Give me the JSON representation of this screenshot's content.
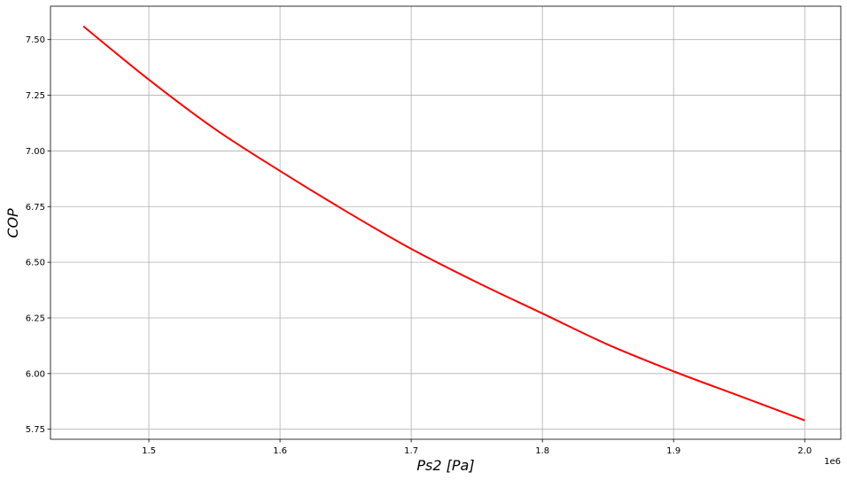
{
  "chart_data": {
    "type": "line",
    "xlabel": "Ps2 [Pa]",
    "ylabel": "COP",
    "x_offset_text": "1e6",
    "xlim": [
      1.425,
      2.0275
    ],
    "ylim": [
      5.705,
      7.65
    ],
    "grid": true,
    "x_ticks": [
      1.5,
      1.6,
      1.7,
      1.8,
      1.9,
      2.0
    ],
    "x_tick_labels": [
      "1.5",
      "1.6",
      "1.7",
      "1.8",
      "1.9",
      "2.0"
    ],
    "y_ticks": [
      5.75,
      6.0,
      6.25,
      6.5,
      6.75,
      7.0,
      7.25,
      7.5
    ],
    "y_tick_labels": [
      "5.75",
      "6.00",
      "6.25",
      "6.50",
      "6.75",
      "7.00",
      "7.25",
      "7.50"
    ],
    "series": [
      {
        "color": "#ff0000",
        "x": [
          1.45,
          1.5,
          1.55,
          1.6,
          1.65,
          1.7,
          1.75,
          1.8,
          1.85,
          1.9,
          1.95,
          2.0
        ],
        "y": [
          7.56,
          7.32,
          7.1,
          6.91,
          6.73,
          6.56,
          6.41,
          6.27,
          6.13,
          6.01,
          5.9,
          5.79
        ]
      }
    ]
  }
}
